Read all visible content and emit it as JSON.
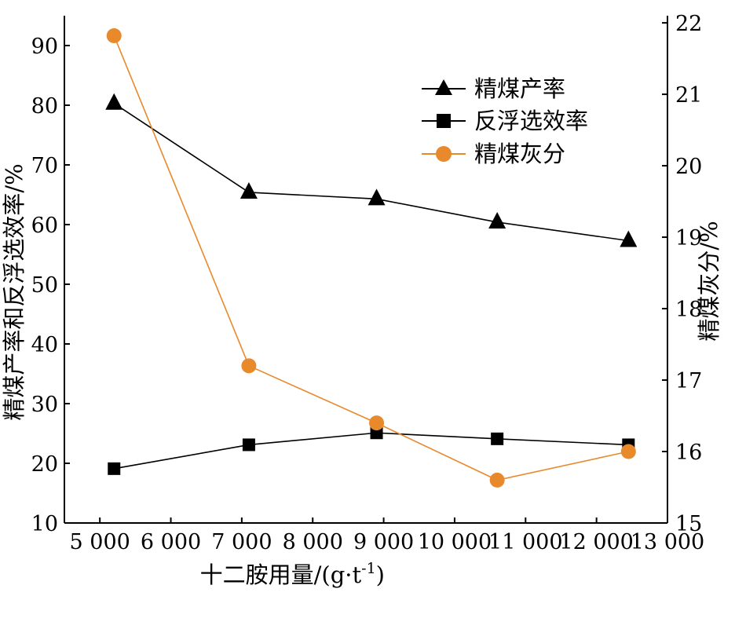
{
  "chart_data": {
    "type": "line",
    "x": [
      5200,
      7100,
      8900,
      10600,
      12450
    ],
    "xlabel": "十二胺用量/(g·t",
    "xlabel_sup": "-1",
    "xlabel_tail": ")",
    "xlim": [
      4500,
      13000
    ],
    "xticks": [
      5000,
      6000,
      7000,
      8000,
      9000,
      10000,
      11000,
      12000,
      13000
    ],
    "xtick_labels": [
      "5 000",
      "6 000",
      "7 000",
      "8 000",
      "9 000",
      "10 000",
      "11 000",
      "12 000",
      "13 000"
    ],
    "ylabel_left": "精煤产率和反浮选效率/%",
    "ylim_left": [
      10,
      95
    ],
    "yticks_left": [
      10,
      20,
      30,
      40,
      50,
      60,
      70,
      80,
      90
    ],
    "ytick_labels_left": [
      "10",
      "20",
      "30",
      "40",
      "50",
      "60",
      "70",
      "80",
      "90"
    ],
    "ylabel_right": "精煤灰分/%",
    "ylim_right": [
      15,
      22.1
    ],
    "yticks_right": [
      15,
      16,
      17,
      18,
      19,
      20,
      21,
      22
    ],
    "ytick_labels_right": [
      "15",
      "16",
      "17",
      "18",
      "19",
      "20",
      "21",
      "22"
    ],
    "grid": false,
    "legend_position": "top-right",
    "series": [
      {
        "name": "精煤产率",
        "axis": "left",
        "marker": "triangle",
        "color": "#000000",
        "values": [
          80.3,
          65.4,
          64.3,
          60.4,
          57.3
        ]
      },
      {
        "name": "反浮选效率",
        "axis": "left",
        "marker": "square",
        "color": "#000000",
        "values": [
          19.1,
          23.1,
          25.1,
          24.1,
          23.1
        ]
      },
      {
        "name": "精煤灰分",
        "axis": "right",
        "marker": "circle",
        "color": "#e8892b",
        "values": [
          21.82,
          17.2,
          16.4,
          15.6,
          16.0
        ]
      }
    ]
  }
}
